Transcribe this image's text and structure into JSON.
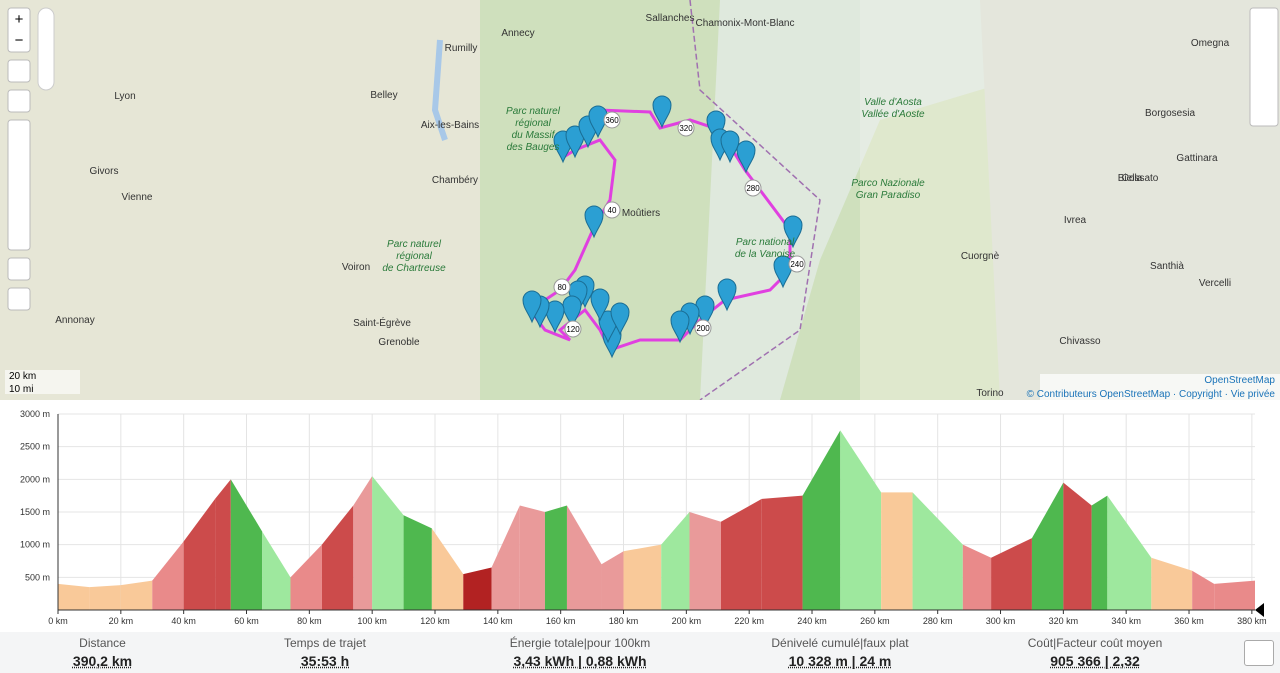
{
  "map": {
    "labels": [
      "Lyon",
      "Annecy",
      "Chambéry",
      "Grenoble",
      "Moûtiers",
      "Sallanches",
      "Chamonix-Mont-Blanc",
      "Valle d'Aosta",
      "Vallée d'Aoste",
      "Parco Nazionale",
      "Gran Paradiso",
      "Biella",
      "Ivrea",
      "Vercelli",
      "Torino",
      "Rumilly",
      "Aix-les-Bains",
      "Voiron",
      "Parc naturel",
      "régional",
      "de Chartreuse",
      "Parc naturel",
      "régional",
      "du Massif",
      "des Bauges",
      "Vienne",
      "Givors",
      "Annonay",
      "Belley",
      "Saint-Égrève",
      "Borgosesia",
      "Omegna",
      "Gattinara",
      "Santhià",
      "Chivasso",
      "Cuorgnè",
      "Cossato",
      "Parc national",
      "de la Vanoise"
    ],
    "route_labels": [
      "40",
      "80",
      "120",
      "200",
      "240",
      "280",
      "320",
      "360"
    ],
    "scale": [
      "20 km",
      "10 mi"
    ],
    "attribution": {
      "source": "OpenStreetMap",
      "credits": "© Contributeurs OpenStreetMap · Copyright · Vie privée"
    }
  },
  "chart_data": {
    "type": "area",
    "x": [
      0,
      10,
      20,
      30,
      40,
      50,
      55,
      65,
      74,
      84,
      94,
      100,
      110,
      119,
      129,
      138,
      147,
      155,
      162,
      173,
      180,
      192,
      201,
      211,
      224,
      237,
      249,
      262,
      272,
      288,
      297,
      310,
      320,
      329,
      334,
      348,
      361,
      368,
      381
    ],
    "values": [
      400,
      350,
      380,
      450,
      1050,
      1700,
      2000,
      1200,
      500,
      1000,
      1600,
      2050,
      1450,
      1250,
      550,
      650,
      1600,
      1500,
      1600,
      700,
      900,
      1000,
      1500,
      1350,
      1700,
      1750,
      2750,
      1800,
      1800,
      1000,
      800,
      1100,
      1950,
      1600,
      1750,
      800,
      600,
      400,
      450
    ],
    "segment_colors": [
      "#f9c999",
      "#f9c999",
      "#f9c999",
      "#e98a8a",
      "#cc4b4b",
      "#cc4b4b",
      "#4fb84f",
      "#9ee89e",
      "#e98a8a",
      "#cc4b4b",
      "#e99a9a",
      "#9ee89e",
      "#4fb84f",
      "#f9c999",
      "#b22222",
      "#e99a9a",
      "#e99a9a",
      "#4fb84f",
      "#e99a9a",
      "#e99a9a",
      "#f9c999",
      "#9ee89e",
      "#e99a9a",
      "#cc4b4b",
      "#cc4b4b",
      "#4fb84f",
      "#9ee89e",
      "#f9c999",
      "#9ee89e",
      "#e98a8a",
      "#cc4b4b",
      "#4fb84f",
      "#cc4b4b",
      "#4fb84f",
      "#9ee89e",
      "#f9c999",
      "#e98a8a",
      "#e98a8a"
    ],
    "xlim": [
      0,
      381
    ],
    "ylim": [
      0,
      3000
    ],
    "xticks": [
      {
        "value": 0,
        "label": "0 km"
      },
      {
        "value": 20,
        "label": "20 km"
      },
      {
        "value": 40,
        "label": "40 km"
      },
      {
        "value": 60,
        "label": "60 km"
      },
      {
        "value": 80,
        "label": "80 km"
      },
      {
        "value": 100,
        "label": "100 km"
      },
      {
        "value": 120,
        "label": "120 km"
      },
      {
        "value": 140,
        "label": "140 km"
      },
      {
        "value": 160,
        "label": "160 km"
      },
      {
        "value": 180,
        "label": "180 km"
      },
      {
        "value": 200,
        "label": "200 km"
      },
      {
        "value": 220,
        "label": "220 km"
      },
      {
        "value": 240,
        "label": "240 km"
      },
      {
        "value": 260,
        "label": "260 km"
      },
      {
        "value": 280,
        "label": "280 km"
      },
      {
        "value": 300,
        "label": "300 km"
      },
      {
        "value": 320,
        "label": "320 km"
      },
      {
        "value": 340,
        "label": "340 km"
      },
      {
        "value": 360,
        "label": "360 km"
      },
      {
        "value": 380,
        "label": "380 km"
      }
    ],
    "yticks": [
      {
        "value": 500,
        "label": "500 m"
      },
      {
        "value": 1000,
        "label": "1000 m"
      },
      {
        "value": 1500,
        "label": "1500 m"
      },
      {
        "value": 2000,
        "label": "2000 m"
      },
      {
        "value": 2500,
        "label": "2500 m"
      },
      {
        "value": 3000,
        "label": "3000 m"
      }
    ],
    "grid": true
  },
  "stats": [
    {
      "label": "Distance",
      "value": "390,2 km"
    },
    {
      "label": "Temps de trajet",
      "value": "35:53 h"
    },
    {
      "label": "Énergie totale|pour 100km",
      "value": "3,43 kWh | 0,88 kWh"
    },
    {
      "label": "Dénivelé cumulé|faux plat",
      "value": "10 328 m | 24 m"
    },
    {
      "label": "Coût|Facteur coût moyen",
      "value": "905 366 | 2,32"
    }
  ]
}
